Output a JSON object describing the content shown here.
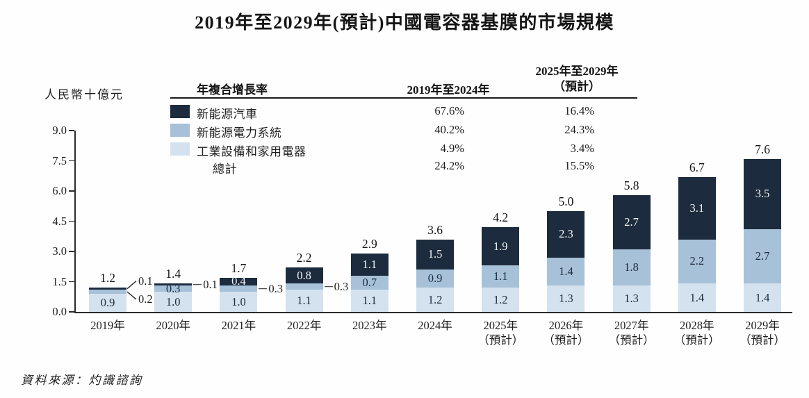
{
  "title": "2019年至2029年(預計)中國電容器基膜的市場規模",
  "unit_label": "人民幣十億元",
  "source": "資料來源：灼識諮詢",
  "colors": {
    "dark": "#1c2b3d",
    "mid": "#a7c1d8",
    "light": "#d4e2ef",
    "axis": "#2b2b2b",
    "text": "#1e1e1e"
  },
  "cagr_table": {
    "header_left": "年複合增長率",
    "col1_header": "2019年至2024年",
    "col2_header_line1": "2025年至2029年",
    "col2_header_line2": "（預計）",
    "rows": [
      {
        "label": "新能源汽車",
        "swatch": "dark",
        "col1": "67.6%",
        "col2": "16.4%"
      },
      {
        "label": "新能源電力系統",
        "swatch": "mid",
        "col1": "40.2%",
        "col2": "24.3%"
      },
      {
        "label": "工業設備和家用電器",
        "swatch": "light",
        "col1": "4.9%",
        "col2": "3.4%"
      },
      {
        "label": "總計",
        "swatch": null,
        "col1": "24.2%",
        "col2": "15.5%"
      }
    ]
  },
  "chart_data": {
    "type": "bar",
    "stacked": true,
    "title": "2019年至2029年(預計)中國電容器基膜的市場規模",
    "xlabel": "",
    "ylabel": "人民幣十億元",
    "ylim": [
      0,
      9
    ],
    "yticks": [
      "0.0",
      "1.5",
      "3.0",
      "4.5",
      "6.0",
      "7.5",
      "9.0"
    ],
    "grid": false,
    "legend_position": "top-left",
    "categories": [
      "2019年",
      "2020年",
      "2021年",
      "2022年",
      "2023年",
      "2024年",
      "2025年",
      "2026年",
      "2027年",
      "2028年",
      "2029年"
    ],
    "forecast_suffix": "（預計）",
    "forecast_from_index": 6,
    "series": [
      {
        "name": "工業設備和家用電器",
        "color_key": "light",
        "values": [
          0.9,
          1.0,
          1.0,
          1.1,
          1.1,
          1.2,
          1.2,
          1.3,
          1.3,
          1.4,
          1.4
        ]
      },
      {
        "name": "新能源電力系統",
        "color_key": "mid",
        "values": [
          0.2,
          0.3,
          0.3,
          0.3,
          0.7,
          0.9,
          1.1,
          1.4,
          1.8,
          2.2,
          2.7
        ]
      },
      {
        "name": "新能源汽車",
        "color_key": "dark",
        "values": [
          0.1,
          0.1,
          0.4,
          0.8,
          1.1,
          1.5,
          1.9,
          2.3,
          2.7,
          3.1,
          3.5
        ]
      }
    ],
    "totals": [
      "1.2",
      "1.4",
      "1.7",
      "2.2",
      "2.9",
      "3.6",
      "4.2",
      "5.0",
      "5.8",
      "6.7",
      "7.6"
    ],
    "label_overrides": [
      {
        "bar": 0,
        "series": "mid",
        "mode": "callout-angled"
      },
      {
        "bar": 0,
        "series": "dark",
        "mode": "callout-angled"
      },
      {
        "bar": 1,
        "series": "dark",
        "mode": "callout-dash"
      },
      {
        "bar": 2,
        "series": "mid",
        "mode": "callout-dash"
      },
      {
        "bar": 3,
        "series": "mid",
        "mode": "callout-dash"
      }
    ]
  }
}
